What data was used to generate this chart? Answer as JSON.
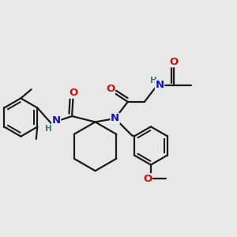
{
  "bg_color": "#e8e8e8",
  "bond_color": "#1a1a1a",
  "N_color": "#1010bb",
  "O_color": "#cc1010",
  "H_color": "#3a7a7a",
  "line_width": 1.6,
  "font_size_atom": 9.5,
  "font_size_H": 7.5,
  "xlim": [
    0,
    10
  ],
  "ylim": [
    0,
    10
  ]
}
